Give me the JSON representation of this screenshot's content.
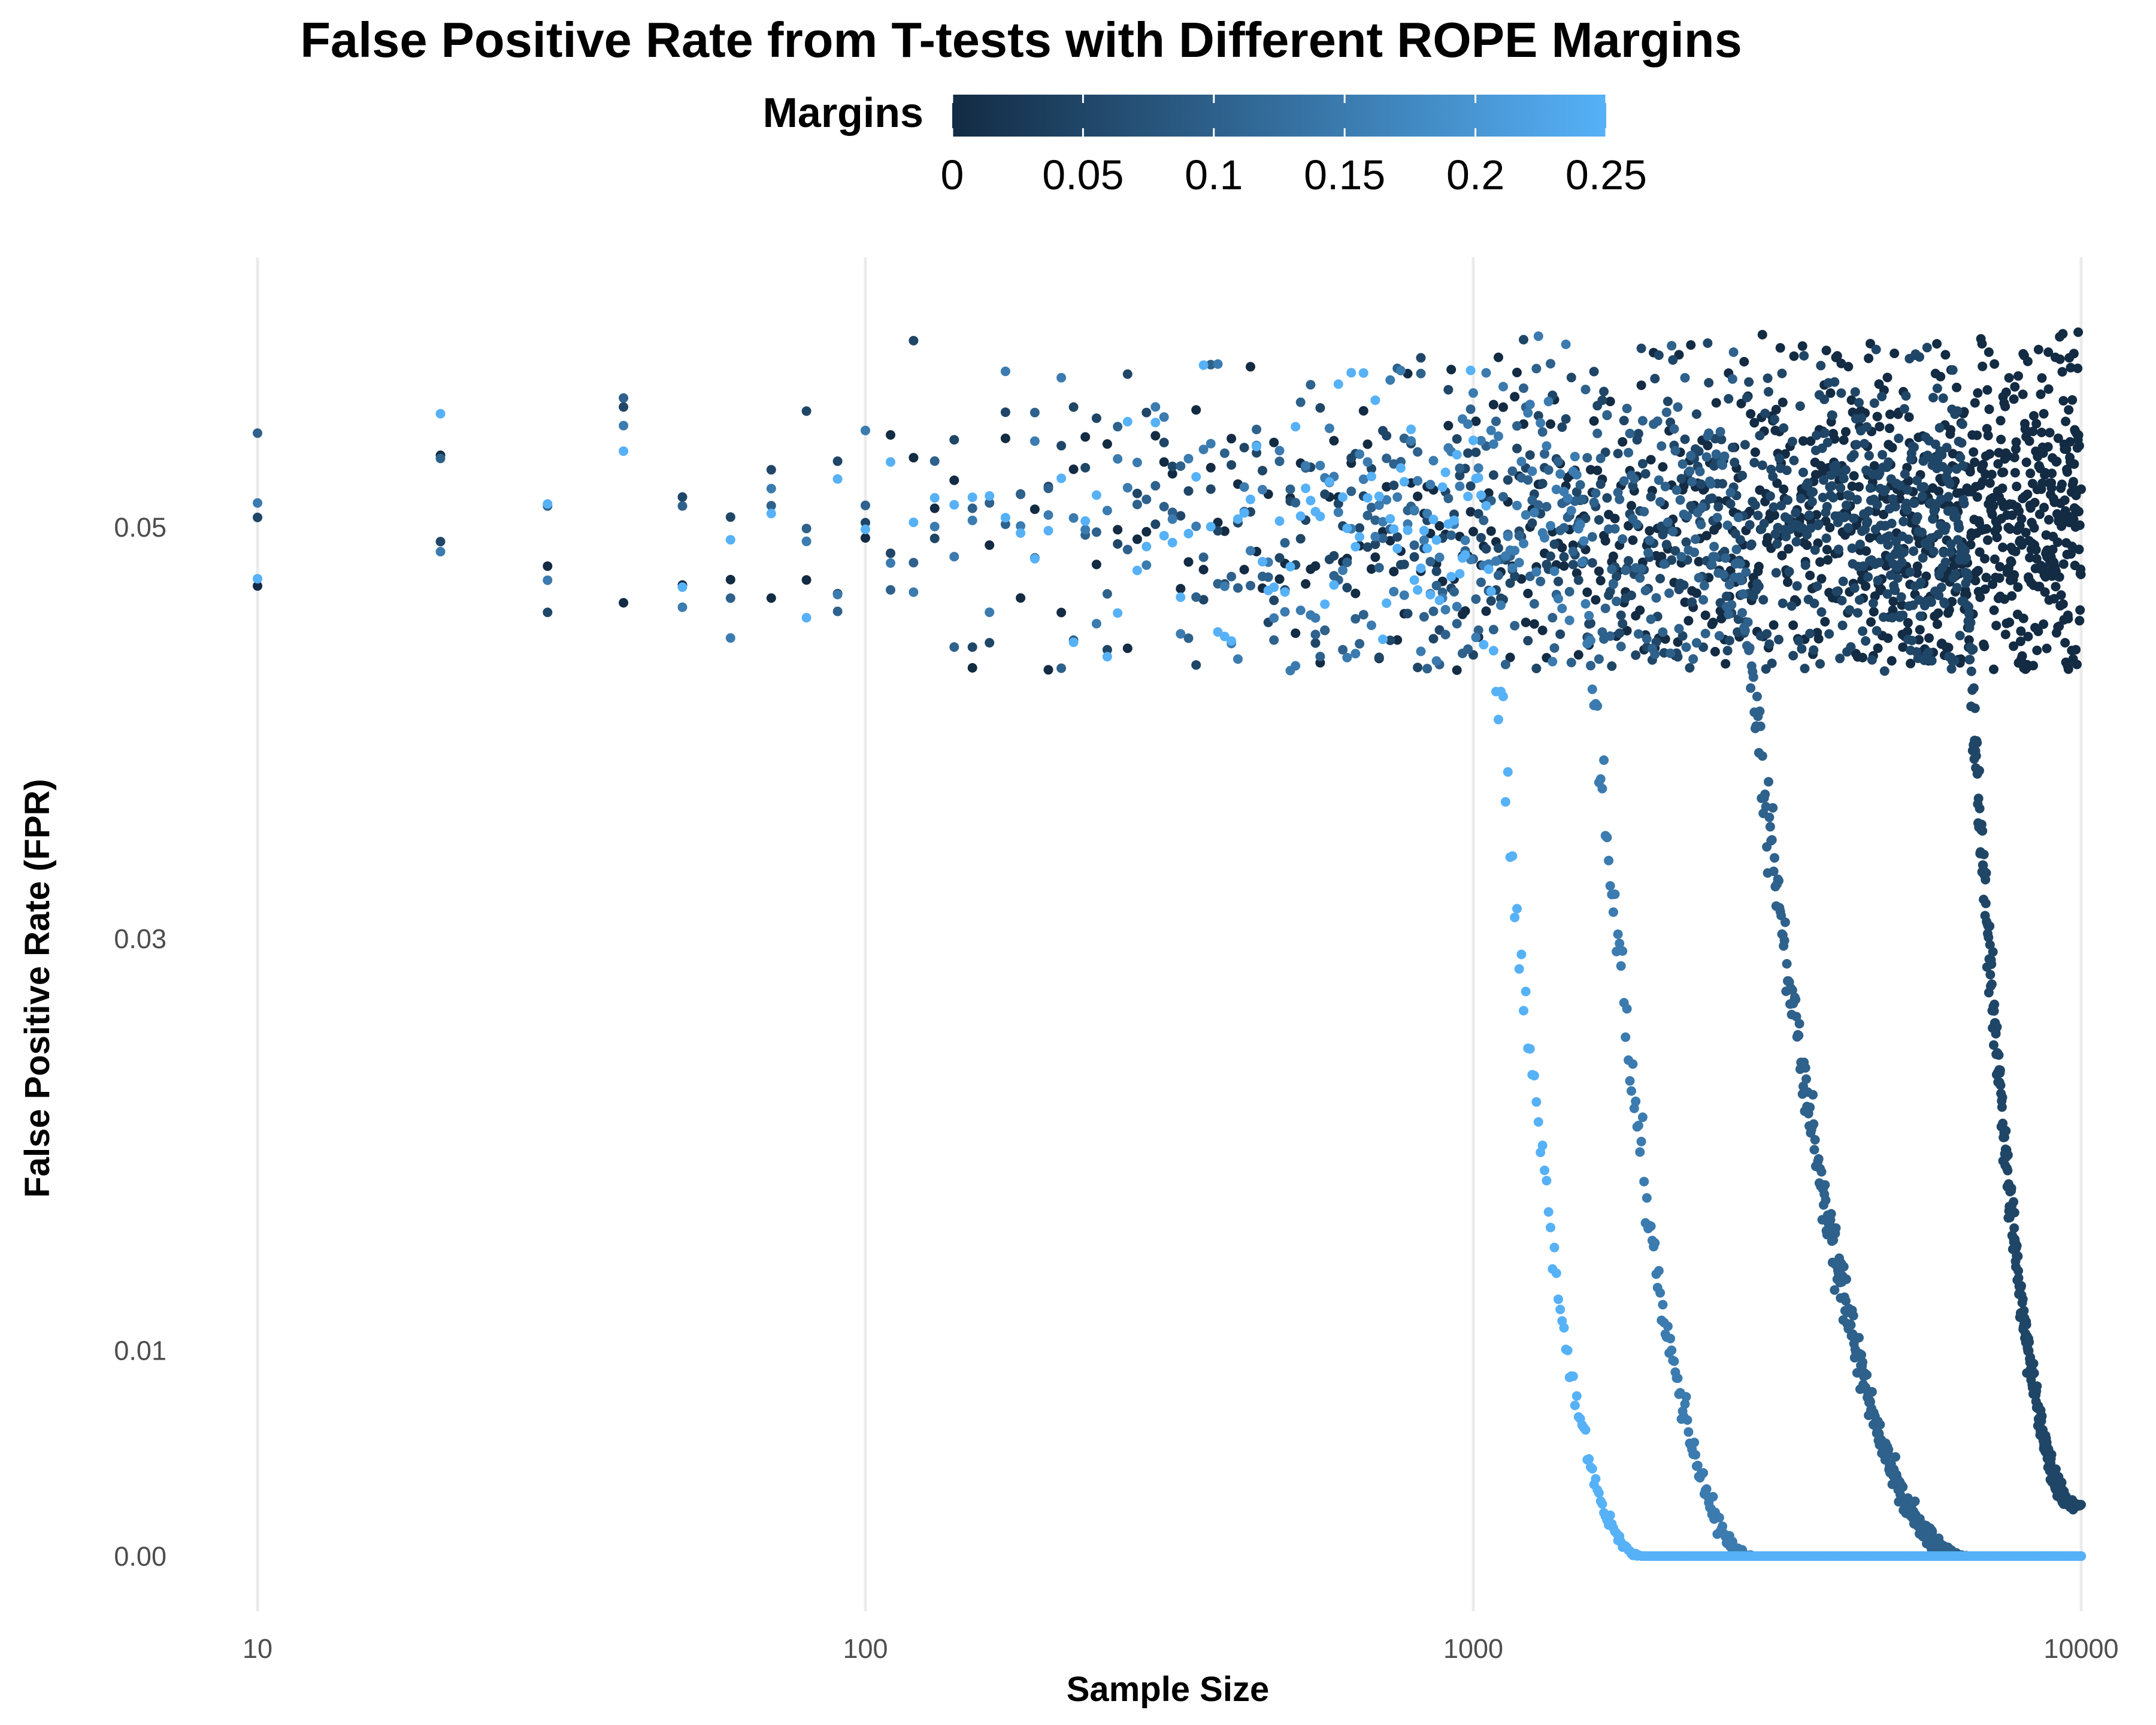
{
  "chart_data": {
    "type": "scatter",
    "title": "False Positive Rate from T-tests with Different ROPE Margins",
    "xlabel": "Sample Size",
    "ylabel": "False Positive Rate (FPR)",
    "x_scale": "log10",
    "xlim": [
      10,
      10000
    ],
    "ylim": [
      0,
      0.062
    ],
    "x_ticks": [
      {
        "value": 10,
        "label": "10"
      },
      {
        "value": 100,
        "label": "100"
      },
      {
        "value": 1000,
        "label": "1000"
      },
      {
        "value": 10000,
        "label": "10000"
      }
    ],
    "y_ticks": [
      {
        "value": 0.0,
        "label": "0.00"
      },
      {
        "value": 0.01,
        "label": "0.01"
      },
      {
        "value": 0.03,
        "label": "0.03"
      },
      {
        "value": 0.05,
        "label": "0.05"
      }
    ],
    "grid": "vertical major gridlines only",
    "legend": {
      "title": "Margins",
      "type": "continuous colorbar",
      "placement": "top",
      "range": [
        0,
        0.25
      ],
      "low_color": "#132B43",
      "high_color": "#56B1F7",
      "ticks": [
        {
          "value": 0,
          "label": "0"
        },
        {
          "value": 0.05,
          "label": "0.05"
        },
        {
          "value": 0.1,
          "label": "0.1"
        },
        {
          "value": 0.15,
          "label": "0.15"
        },
        {
          "value": 0.2,
          "label": "0.2"
        },
        {
          "value": 0.25,
          "label": "0.25"
        }
      ]
    },
    "series": [
      {
        "margin": 0.0,
        "noise_sd": 0.004,
        "decline": null
      },
      {
        "margin": 0.05,
        "noise_sd": 0.004,
        "decline": {
          "x_start": 6400,
          "x_end": 10000,
          "y_end": 0.0025
        }
      },
      {
        "margin": 0.1,
        "noise_sd": 0.004,
        "decline": {
          "x_start": 2700,
          "x_end": 6500,
          "y_end": 0.0
        }
      },
      {
        "margin": 0.15,
        "noise_sd": 0.004,
        "decline": {
          "x_start": 1500,
          "x_end": 2900,
          "y_end": 0.0
        }
      },
      {
        "margin": 0.25,
        "noise_sd": 0.004,
        "decline": {
          "x_start": 1050,
          "x_end": 1900,
          "y_end": 0.0
        }
      }
    ],
    "x_points": "sample sizes from 10 to 10000 in steps of 10",
    "baseline_fpr": 0.05
  }
}
